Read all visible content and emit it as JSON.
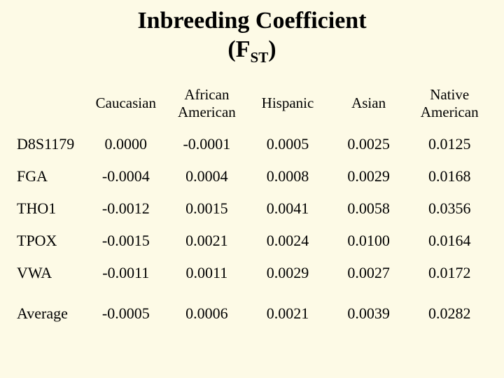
{
  "title": {
    "line1": "Inbreeding Coefficient",
    "line2_pre": "(F",
    "line2_sub": "ST",
    "line2_post": ")"
  },
  "columns": [
    "Caucasian",
    "African American",
    "Hispanic",
    "Asian",
    "Native American"
  ],
  "rows": [
    {
      "label": "D8S1179",
      "values": [
        "0.0000",
        "-0.0001",
        "0.0005",
        "0.0025",
        "0.0125"
      ]
    },
    {
      "label": "FGA",
      "values": [
        "-0.0004",
        "0.0004",
        "0.0008",
        "0.0029",
        "0.0168"
      ]
    },
    {
      "label": "THO1",
      "values": [
        "-0.0012",
        "0.0015",
        "0.0041",
        "0.0058",
        "0.0356"
      ]
    },
    {
      "label": "TPOX",
      "values": [
        "-0.0015",
        "0.0021",
        "0.0024",
        "0.0100",
        "0.0164"
      ]
    },
    {
      "label": "VWA",
      "values": [
        "-0.0011",
        "0.0011",
        "0.0029",
        "0.0027",
        "0.0172"
      ]
    }
  ],
  "average": {
    "label": "Average",
    "values": [
      "-0.0005",
      "0.0006",
      "0.0021",
      "0.0039",
      "0.0282"
    ]
  },
  "style": {
    "background_color": "#fdfae6",
    "text_color": "#000000",
    "title_fontsize": 34,
    "header_fontsize": 21,
    "cell_fontsize": 22,
    "font_family": "Times New Roman"
  }
}
